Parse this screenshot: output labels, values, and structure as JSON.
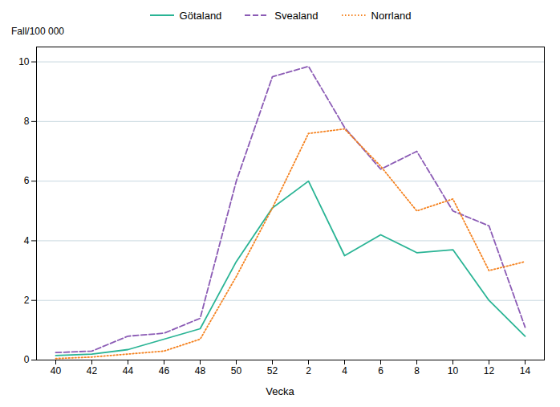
{
  "chart_data": {
    "type": "line",
    "xlabel": "Vecka",
    "ylabel": "Fall/100 000",
    "categories": [
      "40",
      "42",
      "44",
      "46",
      "48",
      "50",
      "52",
      "2",
      "4",
      "6",
      "8",
      "10",
      "12",
      "14"
    ],
    "series": [
      {
        "name": "Götaland",
        "color": "#2ab495",
        "line_style": "solid",
        "values": [
          0.15,
          0.2,
          0.35,
          0.7,
          1.05,
          3.3,
          5.1,
          6.0,
          3.5,
          4.2,
          3.6,
          3.7,
          2.0,
          0.8
        ]
      },
      {
        "name": "Svealand",
        "color": "#8b5bb5",
        "line_style": "dashed",
        "values": [
          0.25,
          0.3,
          0.8,
          0.9,
          1.4,
          6.0,
          9.5,
          9.85,
          7.8,
          6.4,
          7.0,
          5.0,
          4.5,
          1.1
        ]
      },
      {
        "name": "Norrland",
        "color": "#f5821f",
        "line_style": "dotted",
        "values": [
          0.05,
          0.1,
          0.2,
          0.3,
          0.7,
          2.8,
          5.1,
          7.6,
          7.75,
          6.5,
          5.0,
          5.4,
          3.0,
          3.3
        ]
      }
    ],
    "ylim": [
      0,
      10.5
    ],
    "yticks": [
      0,
      2,
      4,
      6,
      8,
      10
    ],
    "grid": true,
    "legend": "top"
  }
}
